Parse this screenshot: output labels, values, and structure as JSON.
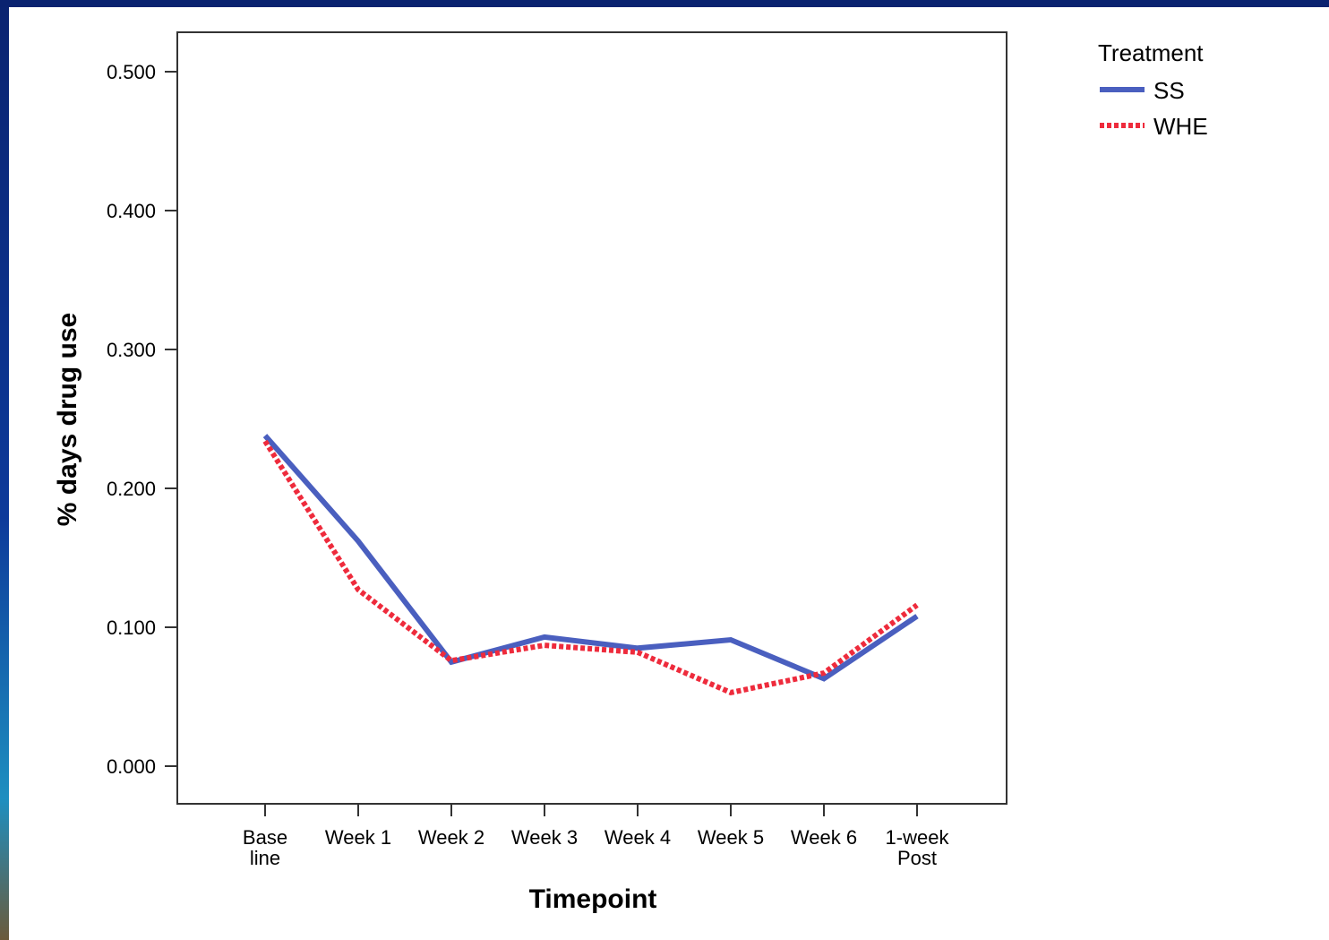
{
  "chart_data": {
    "type": "line",
    "title": "",
    "xlabel": "Timepoint",
    "ylabel": "% days drug use",
    "categories": [
      [
        "Base",
        "line"
      ],
      [
        "Week 1"
      ],
      [
        "Week 2"
      ],
      [
        "Week 3"
      ],
      [
        "Week 4"
      ],
      [
        "Week 5"
      ],
      [
        "Week 6"
      ],
      [
        "1-week",
        "Post"
      ]
    ],
    "ylim": [
      0,
      0.5
    ],
    "yticks": [
      "0.000",
      "0.100",
      "0.200",
      "0.300",
      "0.400",
      "0.500"
    ],
    "legend": {
      "title": "Treatment",
      "position": "top-right, outside plot"
    },
    "series": [
      {
        "name": "SS",
        "color": "#4a5fbf",
        "style": "solid",
        "values": [
          0.238,
          0.162,
          0.075,
          0.093,
          0.085,
          0.091,
          0.063,
          0.108
        ]
      },
      {
        "name": "WHE",
        "color": "#ee2b3c",
        "style": "dotted",
        "values": [
          0.234,
          0.127,
          0.076,
          0.087,
          0.082,
          0.053,
          0.067,
          0.116
        ]
      }
    ],
    "grid": false
  }
}
